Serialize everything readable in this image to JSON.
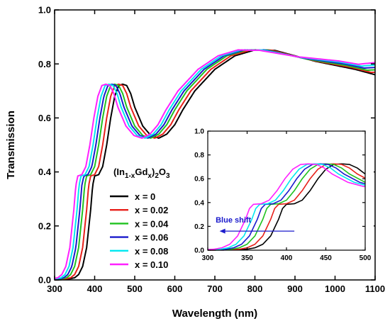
{
  "chart_data": {
    "type": "line",
    "xlabel": "Wavelength (nm)",
    "ylabel": "Transmission",
    "xlim": [
      300,
      1100
    ],
    "ylim": [
      0.0,
      1.0
    ],
    "xticks": [
      "300",
      "400",
      "500",
      "600",
      "700",
      "800",
      "900",
      "1000",
      "1100"
    ],
    "yticks": [
      "0.0",
      "0.2",
      "0.4",
      "0.6",
      "0.8",
      "1.0"
    ],
    "legend_title": "(In1-xGdx)2O3",
    "legend_title_parts": {
      "a": "(In",
      "s1": "1-x",
      "b": "Gd",
      "s2": "x",
      "c": ")",
      "s3": "2",
      "d": "O",
      "s4": "3"
    },
    "legend_placement": "left-center",
    "series": [
      {
        "name": "x = 0",
        "color": "#000000",
        "shift": 0
      },
      {
        "name": "x = 0.02",
        "color": "#e8201a",
        "shift": -10
      },
      {
        "name": "x = 0.04",
        "color": "#1fc21f",
        "shift": -20
      },
      {
        "name": "x = 0.06",
        "color": "#1a1acc",
        "shift": -27
      },
      {
        "name": "x = 0.08",
        "color": "#00e8f0",
        "shift": -34
      },
      {
        "name": "x = 0.10",
        "color": "#ff20ff",
        "shift": -42
      }
    ],
    "base_curve": {
      "x": [
        300,
        330,
        350,
        360,
        370,
        380,
        390,
        395,
        400,
        410,
        420,
        430,
        440,
        450,
        460,
        470,
        480,
        490,
        500,
        520,
        540,
        560,
        580,
        600,
        620,
        650,
        700,
        750,
        800,
        850,
        900,
        950,
        1000,
        1050,
        1100
      ],
      "y": [
        0.0,
        0.002,
        0.008,
        0.02,
        0.05,
        0.12,
        0.26,
        0.35,
        0.385,
        0.39,
        0.42,
        0.5,
        0.6,
        0.68,
        0.72,
        0.725,
        0.72,
        0.69,
        0.64,
        0.57,
        0.535,
        0.525,
        0.54,
        0.575,
        0.63,
        0.7,
        0.78,
        0.83,
        0.852,
        0.85,
        0.83,
        0.81,
        0.795,
        0.78,
        0.76
      ]
    },
    "inset": {
      "xlim": [
        300,
        500
      ],
      "ylim": [
        0.0,
        1.0
      ],
      "xticks": [
        "300",
        "350",
        "400",
        "450",
        "500"
      ],
      "yticks": [
        "0.0",
        "0.2",
        "0.4",
        "0.6",
        "0.8",
        "1.0"
      ],
      "annotation": "Blue shift",
      "annotation_color": "#1a1acc",
      "arrow_from_x": 410,
      "arrow_to_x": 315,
      "arrow_y": 0.16
    }
  }
}
